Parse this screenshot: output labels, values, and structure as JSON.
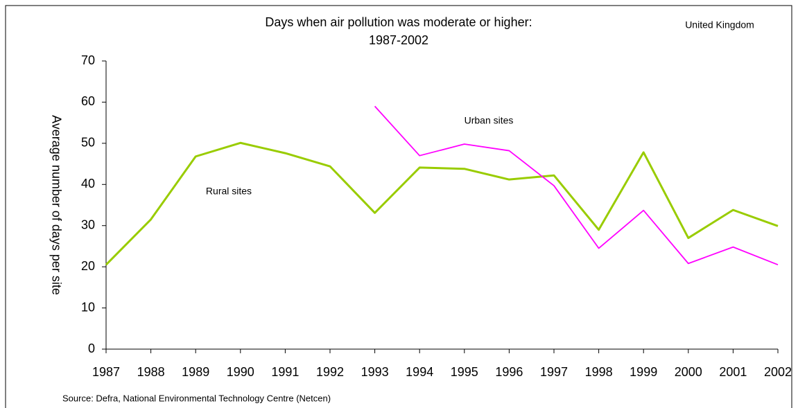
{
  "chart_data": {
    "type": "line",
    "title": [
      "Days when air pollution was moderate or higher:",
      "1987-2002"
    ],
    "subtitle": "United Kingdom",
    "y_label": "Average number of days per site",
    "source": "Source: Defra, National Environmental Technology Centre (Netcen)",
    "annotations": [
      "Urban sites",
      "Rural sites"
    ],
    "x": [
      1987,
      1988,
      1989,
      1990,
      1991,
      1992,
      1993,
      1994,
      1995,
      1996,
      1997,
      1998,
      1999,
      2000,
      2001,
      2002
    ],
    "series": [
      {
        "name": "Rural sites",
        "color": "#99cc00",
        "values": [
          20.5,
          31.5,
          46.8,
          50.1,
          47.6,
          44.4,
          33.1,
          44.1,
          43.8,
          41.2,
          42.2,
          29,
          47.8,
          27,
          33.8,
          29.9
        ]
      },
      {
        "name": "Urban sites",
        "color": "#ff00ff",
        "values": [
          null,
          null,
          null,
          null,
          null,
          null,
          59,
          47,
          49.8,
          48.2,
          39.7,
          24.5,
          33.7,
          20.8,
          24.8,
          20.5
        ]
      }
    ],
    "xlim": [
      1987,
      2002
    ],
    "xticks": [
      1987,
      1988,
      1989,
      1990,
      1991,
      1992,
      1993,
      1994,
      1995,
      1996,
      1997,
      1998,
      1999,
      2000,
      2001,
      2002
    ],
    "ylim": [
      0,
      70
    ],
    "yticks": [
      0,
      10,
      20,
      30,
      40,
      50,
      60,
      70
    ],
    "grid": false
  }
}
